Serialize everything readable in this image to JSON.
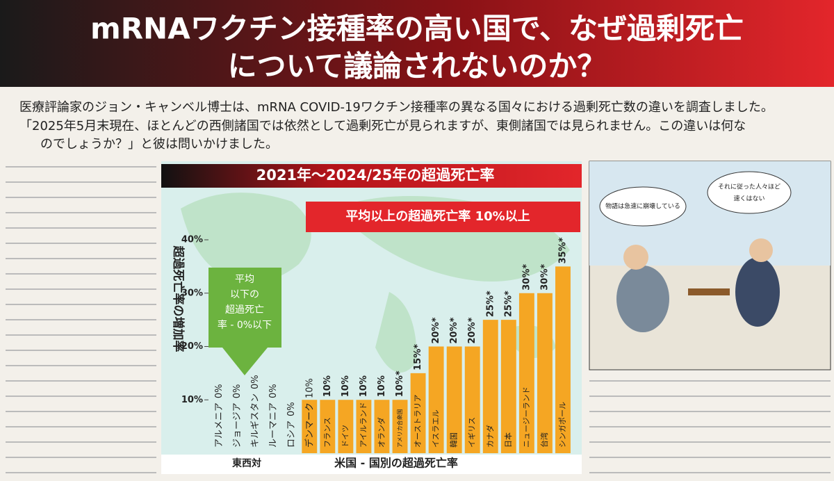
{
  "header": {
    "title_lines": [
      "mRNAワクチン接種率の高い国で、なぜ過剰死亡",
      "について議論されないのか？"
    ],
    "intro_lines": [
      "医療評論家のジョン・キャンベル博士は、mRNA COVID-19ワクチン接種率の異なる国々における過剰死亡数の違いを調査しました。",
      "「2025年5月末現在、ほとんどの西側諸国では依然として過剰死亡が見られますが、東側諸国では見られません。この違いは何な",
      "のでしょうか？」と彼は問いかけました。"
    ]
  },
  "chart_data": {
    "type": "bar",
    "title": "2021年～2024/25年の超過死亡率",
    "y_label": "超過死亡率の増加率",
    "categories": [
      "アルメニア",
      "ジョージア",
      "キルギスタン",
      "ルーマニア",
      "ロシア",
      "デンマーク",
      "フランス",
      "ドイツ",
      "アイルランド",
      "オランダ",
      "アメリカ合衆国",
      "オーストラリア",
      "イスラエル",
      "韓国",
      "イギリス",
      "カナダ",
      "日本",
      "ニュージーランド",
      "台湾",
      "シンガポール"
    ],
    "values": [
      0,
      0,
      0,
      0,
      0,
      10,
      10,
      10,
      10,
      10,
      10,
      15,
      20,
      20,
      20,
      25,
      25,
      30,
      30,
      35
    ],
    "value_labels": [
      "0%",
      "0%",
      "0%",
      "0%",
      "0%",
      "10%",
      "10%",
      "10%",
      "10%",
      "10%",
      "10%*",
      "15%*",
      "20%*",
      "20%*",
      "20%*",
      "25%*",
      "25%*",
      "30%*",
      "30%*",
      "35%*"
    ],
    "color": "#f5a623",
    "ylim": [
      0,
      40
    ],
    "yticks": [
      {
        "value": 10,
        "label": "10%"
      },
      {
        "value": 20,
        "label": "20%"
      },
      {
        "value": 30,
        "label": "30%"
      },
      {
        "value": 40,
        "label": "40%"
      }
    ],
    "annotations": {
      "below_average_lines": [
        "平均",
        "以下の",
        "超過死亡",
        "率 - 0%以下"
      ],
      "above_average": "平均以上の超過死亡率 10%以上",
      "east_label": "東西対",
      "west_label": "米国 - 国別の超過死亡率"
    }
  },
  "cartoon": {
    "bubble_left": "物語は急速に崩壊している",
    "bubble_right_lines": [
      "それに従った人々ほど",
      "速くはない"
    ]
  }
}
